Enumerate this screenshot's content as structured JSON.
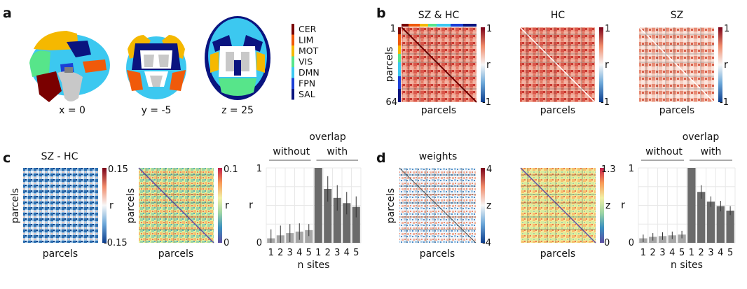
{
  "panel_letters": [
    "a",
    "b",
    "c",
    "d"
  ],
  "panel_a": {
    "slice_labels": [
      "x = 0",
      "y = -5",
      "z = 25"
    ],
    "legend": [
      {
        "label": "CER",
        "color": "#7a0000"
      },
      {
        "label": "LIM",
        "color": "#f05a0a"
      },
      {
        "label": "MOT",
        "color": "#f5b800"
      },
      {
        "label": "VIS",
        "color": "#57e58a"
      },
      {
        "label": "DMN",
        "color": "#3cc8f0"
      },
      {
        "label": "FPN",
        "color": "#1b3fd6"
      },
      {
        "label": "SAL",
        "color": "#0a147f"
      }
    ]
  },
  "panel_b": {
    "matrices": [
      {
        "title": "SZ & HC",
        "xlabel": "parcels",
        "ylabel": "parcels",
        "tick_top": "1",
        "tick_bottom": "64",
        "cbar_label": "r",
        "cbar_max": "1",
        "cbar_min": "-1"
      },
      {
        "title": "HC",
        "xlabel": "parcels",
        "ylabel": "",
        "cbar_label": "r",
        "cbar_max": "1",
        "cbar_min": "-1"
      },
      {
        "title": "SZ",
        "xlabel": "parcels",
        "ylabel": "",
        "cbar_label": "r",
        "cbar_max": "1",
        "cbar_min": "-1"
      }
    ]
  },
  "panel_c": {
    "diff_matrix": {
      "title": "SZ - HC",
      "xlabel": "parcels",
      "ylabel": "parcels",
      "cbar_label": "r",
      "cbar_max": "0.15",
      "cbar_min": "-0.15"
    },
    "overlap_matrix": {
      "title": "",
      "xlabel": "parcels",
      "ylabel": "parcels",
      "cbar_label": "r",
      "cbar_max": "0.1",
      "cbar_min": "0"
    },
    "chart_data": {
      "type": "bar",
      "title": "overlap",
      "group_labels": [
        "without",
        "with"
      ],
      "xlabel": "n sites",
      "ylabel": "r",
      "ylim": [
        0,
        1
      ],
      "y_tick_labels": [
        "0",
        "1"
      ],
      "categories": [
        "1",
        "2",
        "3",
        "4",
        "5",
        "1",
        "2",
        "3",
        "4",
        "5"
      ],
      "values": [
        0.06,
        0.1,
        0.13,
        0.15,
        0.17,
        1.0,
        0.72,
        0.6,
        0.53,
        0.48
      ],
      "errors": [
        0.12,
        0.13,
        0.12,
        0.11,
        0.08,
        0,
        0.17,
        0.17,
        0.15,
        0.14
      ],
      "groups": [
        "without",
        "without",
        "without",
        "without",
        "without",
        "with",
        "with",
        "with",
        "with",
        "with"
      ],
      "grid": true
    }
  },
  "panel_d": {
    "weights_matrix": {
      "title": "weights",
      "xlabel": "parcels",
      "ylabel": "parcels",
      "cbar_label": "z",
      "cbar_max": "4",
      "cbar_min": "-4"
    },
    "overlap_matrix": {
      "title": "",
      "xlabel": "parcels",
      "ylabel": "",
      "cbar_label": "z",
      "cbar_max": "1.3",
      "cbar_min": "0"
    },
    "chart_data": {
      "type": "bar",
      "title": "overlap",
      "group_labels": [
        "without",
        "with"
      ],
      "xlabel": "n sites",
      "ylabel": "r",
      "ylim": [
        0,
        1
      ],
      "y_tick_labels": [
        "0",
        "1"
      ],
      "categories": [
        "1",
        "2",
        "3",
        "4",
        "5",
        "1",
        "2",
        "3",
        "4",
        "5"
      ],
      "values": [
        0.06,
        0.08,
        0.09,
        0.1,
        0.11,
        1.0,
        0.68,
        0.55,
        0.49,
        0.43
      ],
      "errors": [
        0.05,
        0.05,
        0.05,
        0.05,
        0.05,
        0,
        0.09,
        0.07,
        0.07,
        0.06
      ],
      "groups": [
        "without",
        "without",
        "without",
        "without",
        "without",
        "with",
        "with",
        "with",
        "with",
        "with"
      ],
      "grid": true
    }
  },
  "colors": {
    "bar_without": "#a6a6a6",
    "bar_with": "#6b6b6b",
    "grid": "#e8e8e8"
  }
}
